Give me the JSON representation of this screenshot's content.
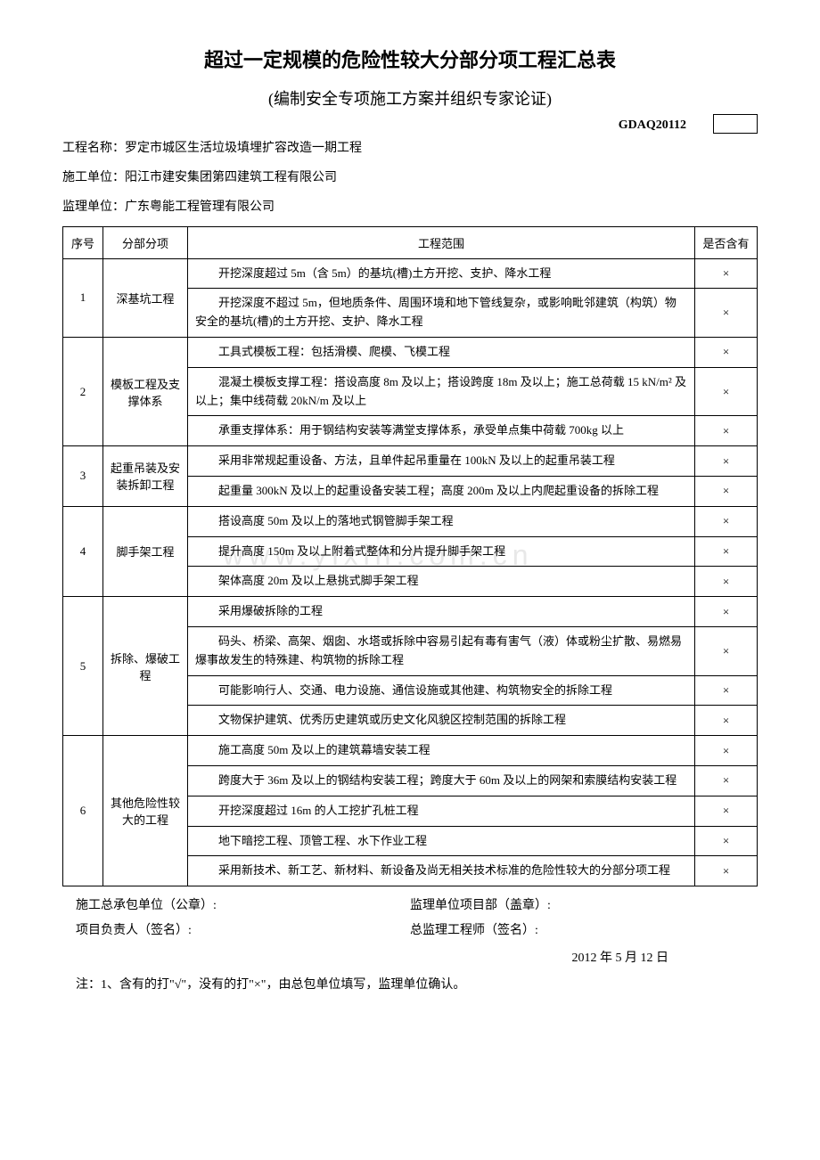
{
  "title": "超过一定规模的危险性较大分部分项工程汇总表",
  "subtitle": "(编制安全专项施工方案并组织专家论证)",
  "code": "GDAQ20112",
  "info": {
    "project_label": "工程名称：",
    "project_value": "罗定市城区生活垃圾填埋扩容改造一期工程",
    "construction_label": "施工单位：",
    "construction_value": "阳江市建安集团第四建筑工程有限公司",
    "supervision_label": "监理单位：",
    "supervision_value": "广东粤能工程管理有限公司"
  },
  "headers": {
    "seq": "序号",
    "category": "分部分项",
    "scope": "工程范围",
    "mark": "是否含有"
  },
  "sections": [
    {
      "seq": "1",
      "category": "深基坑工程",
      "rows": [
        {
          "scope": "开挖深度超过 5m（含 5m）的基坑(槽)土方开挖、支护、降水工程",
          "mark": "×"
        },
        {
          "scope": "开挖深度不超过 5m，但地质条件、周围环境和地下管线复杂，或影响毗邻建筑（构筑）物安全的基坑(槽)的土方开挖、支护、降水工程",
          "mark": "×"
        }
      ]
    },
    {
      "seq": "2",
      "category": "模板工程及支撑体系",
      "rows": [
        {
          "scope": "工具式模板工程：包括滑模、爬模、飞模工程",
          "mark": "×"
        },
        {
          "scope": "混凝土模板支撑工程：搭设高度 8m 及以上；搭设跨度 18m 及以上；施工总荷载 15 kN/m² 及以上；集中线荷载 20kN/m 及以上",
          "mark": "×"
        },
        {
          "scope": "承重支撑体系：用于钢结构安装等满堂支撑体系，承受单点集中荷载 700kg 以上",
          "mark": "×"
        }
      ]
    },
    {
      "seq": "3",
      "category": "起重吊装及安装拆卸工程",
      "rows": [
        {
          "scope": "采用非常规起重设备、方法，且单件起吊重量在 100kN 及以上的起重吊装工程",
          "mark": "×"
        },
        {
          "scope": "起重量 300kN 及以上的起重设备安装工程；高度 200m 及以上内爬起重设备的拆除工程",
          "mark": "×"
        }
      ]
    },
    {
      "seq": "4",
      "category": "脚手架工程",
      "rows": [
        {
          "scope": "搭设高度 50m 及以上的落地式钢管脚手架工程",
          "mark": "×"
        },
        {
          "scope": "提升高度 150m 及以上附着式整体和分片提升脚手架工程",
          "mark": "×"
        },
        {
          "scope": "架体高度 20m 及以上悬挑式脚手架工程",
          "mark": "×"
        }
      ]
    },
    {
      "seq": "5",
      "category": "拆除、爆破工程",
      "rows": [
        {
          "scope": "采用爆破拆除的工程",
          "mark": "×"
        },
        {
          "scope": "码头、桥梁、高架、烟囱、水塔或拆除中容易引起有毒有害气（液）体或粉尘扩散、易燃易爆事故发生的特殊建、构筑物的拆除工程",
          "mark": "×"
        },
        {
          "scope": "可能影响行人、交通、电力设施、通信设施或其他建、构筑物安全的拆除工程",
          "mark": "×"
        },
        {
          "scope": "文物保护建筑、优秀历史建筑或历史文化风貌区控制范围的拆除工程",
          "mark": "×"
        }
      ]
    },
    {
      "seq": "6",
      "category": "其他危险性较大的工程",
      "rows": [
        {
          "scope": "施工高度 50m 及以上的建筑幕墙安装工程",
          "mark": "×"
        },
        {
          "scope": "跨度大于 36m 及以上的钢结构安装工程；跨度大于 60m 及以上的网架和索膜结构安装工程",
          "mark": "×"
        },
        {
          "scope": "开挖深度超过 16m 的人工挖扩孔桩工程",
          "mark": "×"
        },
        {
          "scope": "地下暗挖工程、顶管工程、水下作业工程",
          "mark": "×"
        },
        {
          "scope": "采用新技术、新工艺、新材料、新设备及尚无相关技术标准的危险性较大的分部分项工程",
          "mark": "×"
        }
      ]
    }
  ],
  "signatures": {
    "contractor": "施工总承包单位（公章）:",
    "supervisor_dept": "监理单位项目部（盖章）:",
    "pm": "项目负责人（签名）:",
    "chief": "总监理工程师（签名）:"
  },
  "date": "2012 年 5 月 12 日",
  "note": "注：1、含有的打\"√\"，没有的打\"×\"，由总包单位填写，监理单位确认。",
  "watermark": "www.yixin.com.cn"
}
